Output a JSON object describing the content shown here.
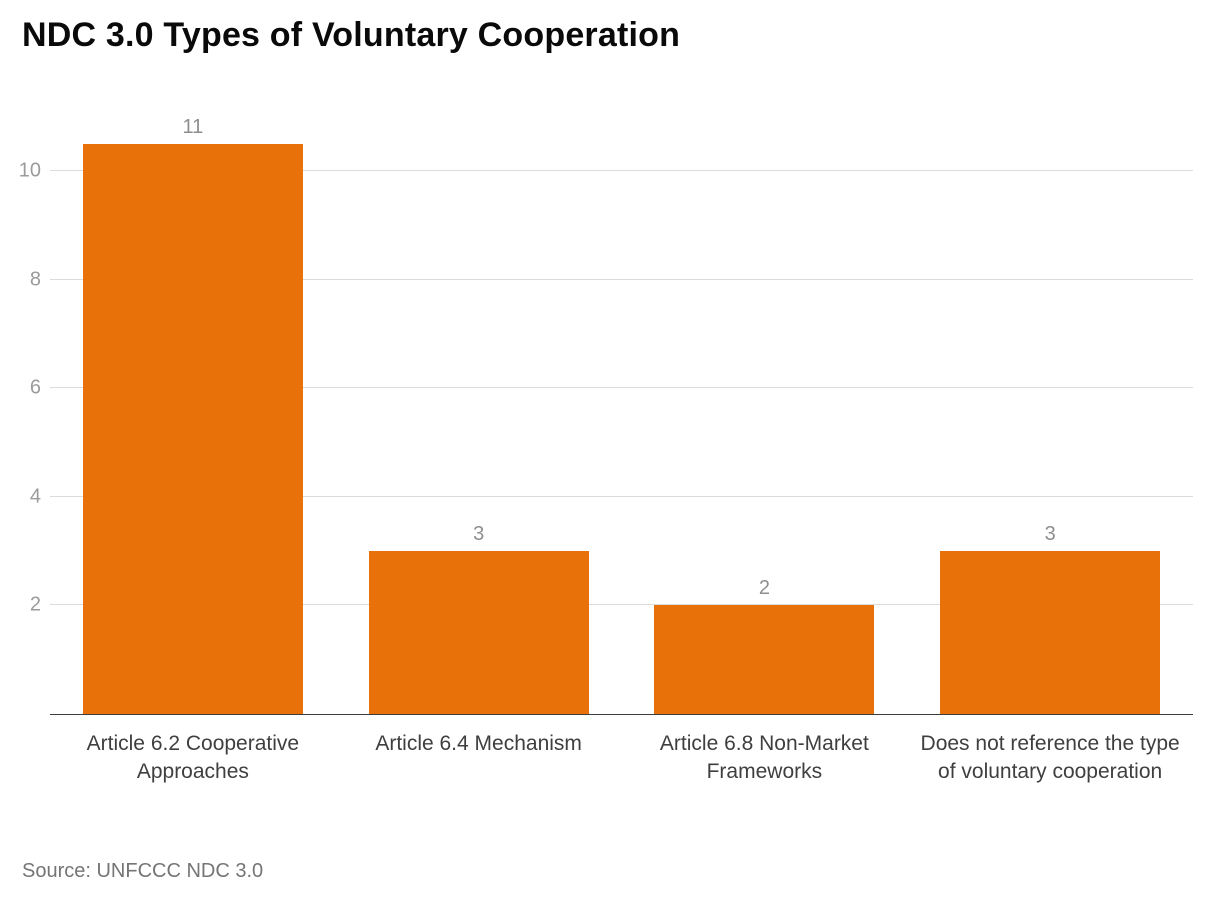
{
  "chart_data": {
    "type": "bar",
    "title": "NDC 3.0 Types of Voluntary Cooperation",
    "categories": [
      "Article 6.2 Cooperative Approaches",
      "Article 6.4 Mechanism",
      "Article 6.8 Non-Market Frameworks",
      "Does not reference the type of voluntary cooperation"
    ],
    "values": [
      11,
      3,
      2,
      3
    ],
    "yticks": [
      2,
      4,
      6,
      8,
      10
    ],
    "ylim": [
      0,
      11
    ],
    "xlabel": "",
    "ylabel": "",
    "grid": true,
    "legend_position": "none",
    "bar_color": "#E8710A",
    "source": "Source: UNFCCC NDC 3.0"
  }
}
